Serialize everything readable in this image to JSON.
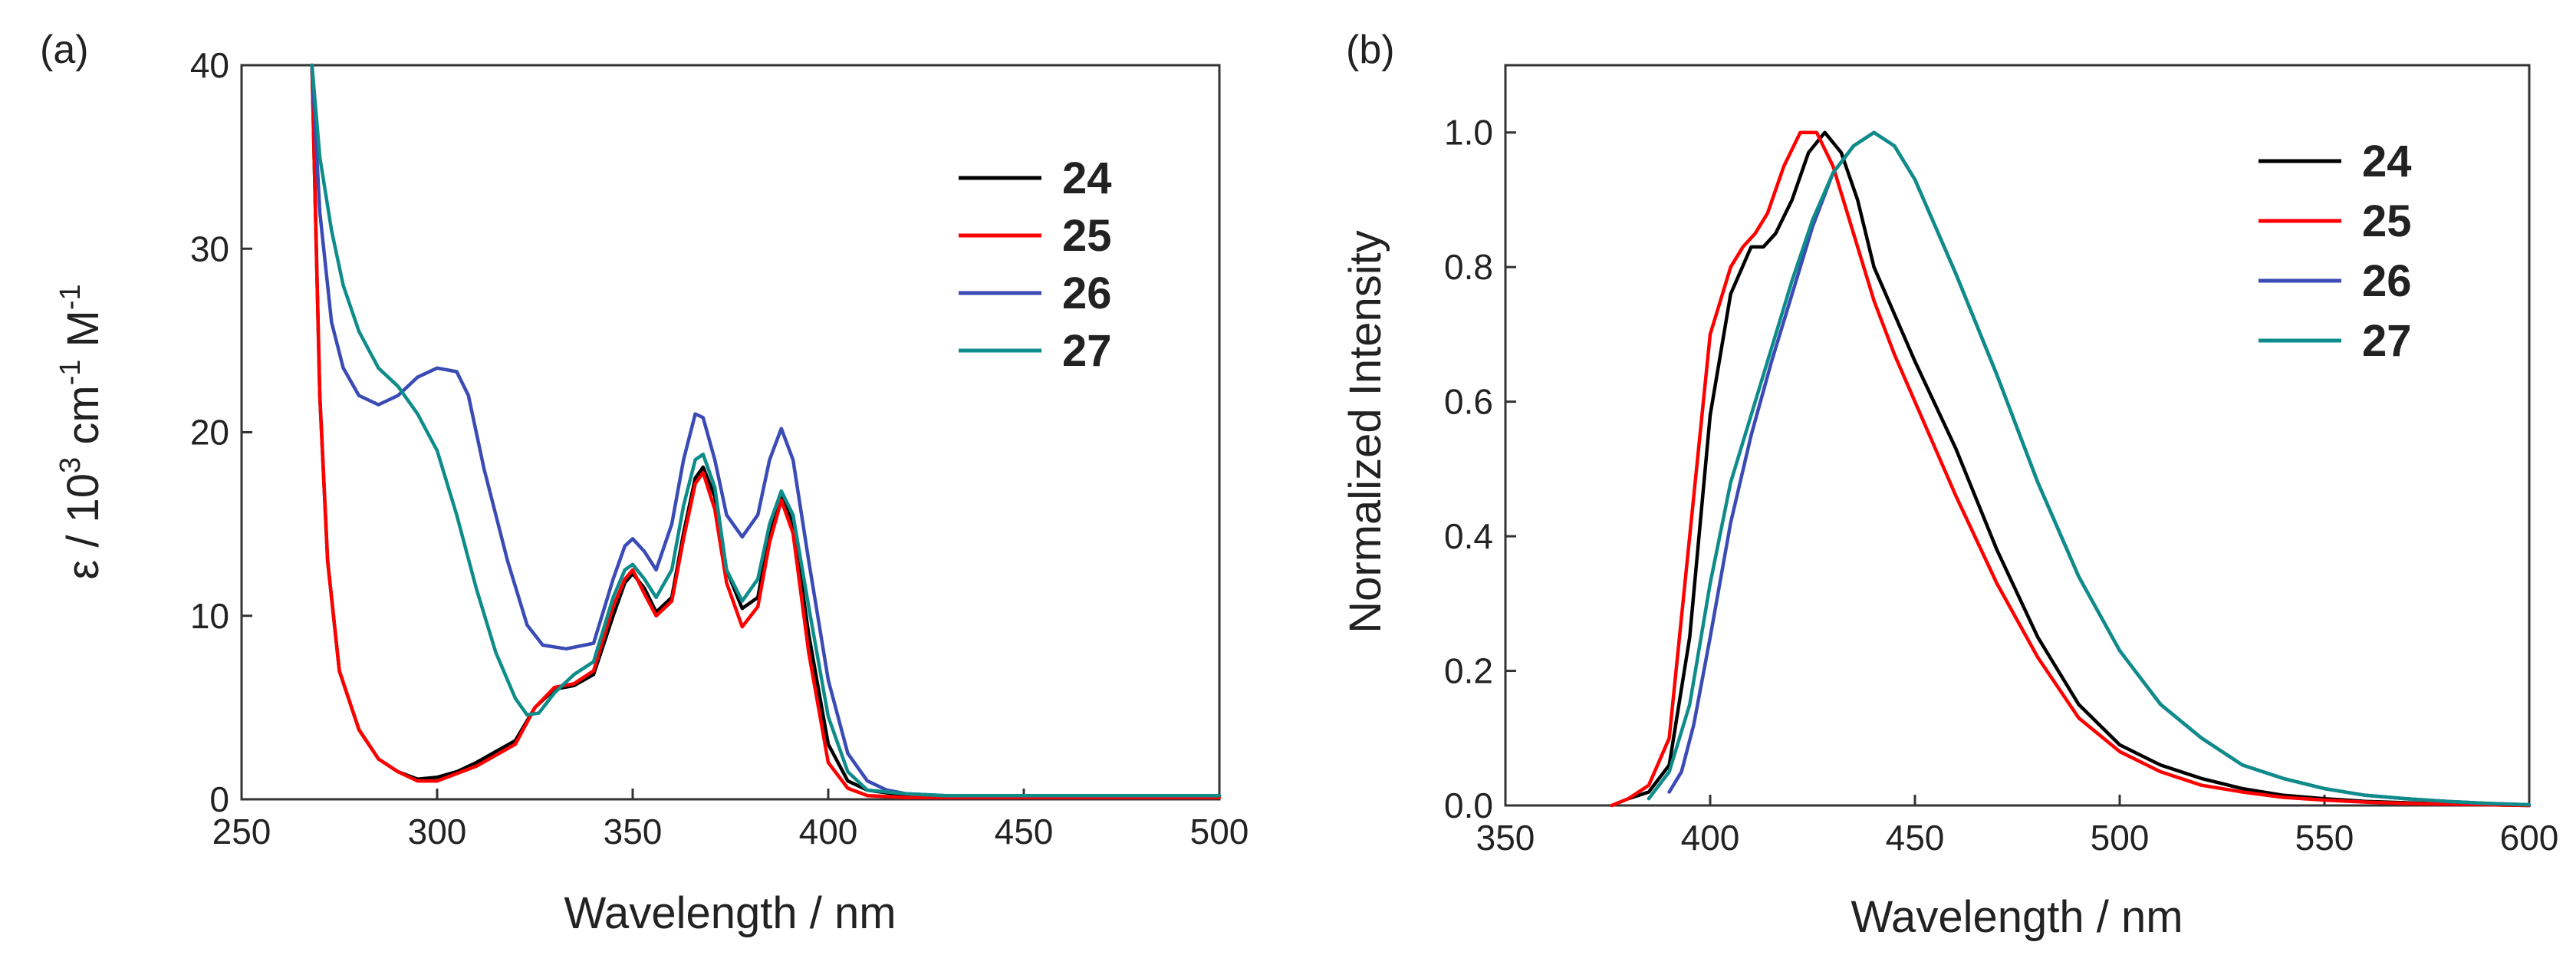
{
  "chart_data": [
    {
      "panel_label": "(a)",
      "type": "line",
      "xlabel": "Wavelength / nm",
      "ylabel": {
        "prefix": "ε / 10",
        "sup1": "3",
        "mid1": " cm",
        "sup2": "-1",
        "mid2": " M",
        "sup3": "-1"
      },
      "xlim": [
        250,
        500
      ],
      "ylim": [
        0,
        40
      ],
      "xticks": [
        250,
        300,
        350,
        400,
        450,
        500
      ],
      "yticks": [
        0,
        10,
        20,
        30,
        40
      ],
      "legend_position": "top-right",
      "series": [
        {
          "name": "24",
          "color": "#000000",
          "x": [
            268,
            270,
            272,
            275,
            280,
            285,
            290,
            295,
            300,
            305,
            310,
            320,
            325,
            330,
            335,
            340,
            345,
            348,
            350,
            353,
            356,
            360,
            363,
            366,
            368,
            371,
            374,
            378,
            382,
            385,
            388,
            391,
            395,
            400,
            405,
            410,
            420,
            430,
            450,
            500
          ],
          "y": [
            40,
            22,
            13,
            7,
            3.8,
            2.2,
            1.5,
            1.1,
            1.2,
            1.5,
            2.0,
            3.2,
            5.0,
            6.0,
            6.2,
            6.8,
            10.0,
            11.8,
            12.3,
            11.5,
            10.2,
            11.0,
            14.5,
            17.5,
            18.1,
            16.5,
            12.5,
            10.4,
            11.0,
            14.5,
            16.5,
            15.0,
            9.0,
            3.0,
            1.0,
            0.5,
            0.2,
            0.2,
            0.2,
            0.2
          ]
        },
        {
          "name": "25",
          "color": "#ff0000",
          "x": [
            268,
            270,
            272,
            275,
            280,
            285,
            290,
            295,
            300,
            305,
            310,
            320,
            325,
            330,
            335,
            340,
            345,
            348,
            350,
            353,
            356,
            360,
            363,
            366,
            368,
            371,
            374,
            378,
            382,
            385,
            388,
            391,
            395,
            400,
            405,
            410,
            420,
            430,
            450,
            500
          ],
          "y": [
            40,
            22,
            13,
            7,
            3.8,
            2.2,
            1.5,
            1.0,
            1.0,
            1.4,
            1.8,
            3.0,
            5.0,
            6.1,
            6.3,
            7.0,
            10.5,
            12.0,
            12.5,
            11.2,
            10.0,
            10.8,
            14.2,
            17.2,
            17.8,
            15.8,
            11.8,
            9.4,
            10.5,
            14.0,
            16.3,
            14.5,
            8.0,
            2.0,
            0.6,
            0.2,
            0.1,
            0.1,
            0.1,
            0.1
          ]
        },
        {
          "name": "26",
          "color": "#3a4bb5",
          "x": [
            268,
            270,
            273,
            276,
            280,
            285,
            290,
            295,
            300,
            305,
            308,
            312,
            318,
            323,
            327,
            333,
            340,
            345,
            348,
            350,
            353,
            356,
            360,
            363,
            366,
            368,
            371,
            374,
            378,
            382,
            385,
            388,
            391,
            395,
            400,
            405,
            410,
            415,
            420,
            430,
            450,
            500
          ],
          "y": [
            40,
            32,
            26,
            23.5,
            22,
            21.5,
            22,
            23.0,
            23.5,
            23.3,
            22.0,
            18.0,
            13.0,
            9.5,
            8.4,
            8.2,
            8.5,
            12.0,
            13.8,
            14.2,
            13.5,
            12.5,
            15.0,
            18.5,
            21.0,
            20.8,
            18.5,
            15.5,
            14.3,
            15.5,
            18.5,
            20.2,
            18.5,
            13.0,
            6.5,
            2.5,
            1.0,
            0.5,
            0.3,
            0.2,
            0.2,
            0.2
          ]
        },
        {
          "name": "27",
          "color": "#0e8c8a",
          "x": [
            268,
            270,
            273,
            276,
            280,
            285,
            290,
            295,
            300,
            305,
            310,
            315,
            320,
            323,
            326,
            330,
            335,
            340,
            345,
            348,
            350,
            353,
            356,
            360,
            363,
            366,
            368,
            371,
            374,
            378,
            382,
            385,
            388,
            391,
            395,
            400,
            405,
            410,
            420,
            430,
            450,
            500
          ],
          "y": [
            40,
            35,
            31,
            28,
            25.5,
            23.5,
            22.5,
            21.0,
            19.0,
            15.5,
            11.5,
            8.0,
            5.5,
            4.6,
            4.7,
            5.8,
            6.8,
            7.5,
            11.0,
            12.5,
            12.8,
            12.0,
            11.0,
            12.5,
            16.0,
            18.5,
            18.8,
            17.0,
            12.5,
            10.8,
            12.0,
            15.0,
            16.8,
            15.5,
            10.5,
            4.5,
            1.5,
            0.5,
            0.3,
            0.2,
            0.2,
            0.2
          ]
        }
      ]
    },
    {
      "panel_label": "(b)",
      "type": "line",
      "xlabel": "Wavelength / nm",
      "ylabel": "Normalized Intensity",
      "xlim": [
        350,
        600
      ],
      "ylim": [
        0,
        1.1
      ],
      "xticks": [
        350,
        400,
        450,
        500,
        550,
        600
      ],
      "yticks": [
        "0.0",
        "0.2",
        "0.4",
        "0.6",
        "0.8",
        "1.0"
      ],
      "legend_position": "top-right",
      "series": [
        {
          "name": "24",
          "color": "#000000",
          "x": [
            380,
            385,
            390,
            395,
            400,
            405,
            410,
            413,
            416,
            420,
            424,
            428,
            432,
            436,
            440,
            445,
            450,
            460,
            470,
            480,
            490,
            500,
            510,
            520,
            530,
            540,
            550,
            560,
            570,
            580,
            590,
            600
          ],
          "y": [
            0.01,
            0.02,
            0.06,
            0.25,
            0.58,
            0.76,
            0.83,
            0.83,
            0.85,
            0.9,
            0.97,
            1.0,
            0.97,
            0.9,
            0.8,
            0.73,
            0.66,
            0.53,
            0.38,
            0.25,
            0.15,
            0.09,
            0.06,
            0.04,
            0.025,
            0.015,
            0.01,
            0.006,
            0.004,
            0.002,
            0.001,
            0.0
          ]
        },
        {
          "name": "25",
          "color": "#ff0000",
          "x": [
            376,
            380,
            385,
            390,
            395,
            400,
            405,
            408,
            411,
            414,
            418,
            422,
            426,
            430,
            435,
            440,
            445,
            450,
            460,
            470,
            480,
            490,
            500,
            510,
            520,
            530,
            540,
            550,
            560,
            570,
            580,
            590,
            600
          ],
          "y": [
            0.0,
            0.01,
            0.03,
            0.1,
            0.4,
            0.7,
            0.8,
            0.83,
            0.85,
            0.88,
            0.95,
            1.0,
            1.0,
            0.95,
            0.85,
            0.75,
            0.67,
            0.6,
            0.46,
            0.33,
            0.22,
            0.13,
            0.08,
            0.05,
            0.03,
            0.02,
            0.012,
            0.008,
            0.005,
            0.003,
            0.002,
            0.001,
            0.0
          ]
        },
        {
          "name": "26",
          "color": "#3a4bb5",
          "x": [
            390,
            393,
            396,
            400,
            405,
            410,
            415,
            420,
            425,
            430,
            435,
            440,
            445,
            450,
            455,
            460,
            470,
            480,
            490,
            500,
            510,
            520,
            530,
            540,
            550,
            560,
            570,
            580,
            590,
            600
          ],
          "y": [
            0.02,
            0.05,
            0.12,
            0.25,
            0.42,
            0.55,
            0.66,
            0.76,
            0.86,
            0.94,
            0.98,
            1.0,
            0.98,
            0.93,
            0.86,
            0.79,
            0.64,
            0.48,
            0.34,
            0.23,
            0.15,
            0.1,
            0.06,
            0.04,
            0.025,
            0.015,
            0.01,
            0.006,
            0.003,
            0.001
          ]
        },
        {
          "name": "27",
          "color": "#0e8c8a",
          "x": [
            385,
            390,
            395,
            400,
            405,
            410,
            415,
            420,
            425,
            430,
            435,
            440,
            445,
            450,
            455,
            460,
            470,
            480,
            490,
            500,
            510,
            520,
            530,
            540,
            550,
            560,
            570,
            580,
            590,
            600
          ],
          "y": [
            0.01,
            0.05,
            0.15,
            0.33,
            0.48,
            0.58,
            0.68,
            0.78,
            0.87,
            0.94,
            0.98,
            1.0,
            0.98,
            0.93,
            0.86,
            0.79,
            0.64,
            0.48,
            0.34,
            0.23,
            0.15,
            0.1,
            0.06,
            0.04,
            0.025,
            0.015,
            0.01,
            0.006,
            0.003,
            0.001
          ]
        }
      ]
    }
  ]
}
